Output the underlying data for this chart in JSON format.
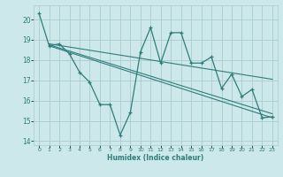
{
  "xlabel": "Humidex (Indice chaleur)",
  "xlim": [
    -0.5,
    23.5
  ],
  "ylim": [
    13.8,
    20.7
  ],
  "yticks": [
    14,
    15,
    16,
    17,
    18,
    19,
    20
  ],
  "xticks": [
    0,
    1,
    2,
    3,
    4,
    5,
    6,
    7,
    8,
    9,
    10,
    11,
    12,
    13,
    14,
    15,
    16,
    17,
    18,
    19,
    20,
    21,
    22,
    23
  ],
  "background_color": "#cce8ea",
  "grid_color": "#aacccc",
  "line_color": "#2e7d7a",
  "series_main_x": [
    0,
    1,
    2,
    3,
    4,
    5,
    6,
    7,
    8,
    9,
    10,
    11,
    12,
    13,
    14,
    15,
    16,
    17,
    18,
    19,
    20,
    21,
    22,
    23
  ],
  "series_main_y": [
    20.3,
    18.7,
    18.8,
    18.3,
    17.4,
    16.9,
    15.8,
    15.8,
    14.3,
    15.4,
    18.4,
    19.6,
    17.85,
    19.35,
    19.35,
    17.85,
    17.85,
    18.15,
    16.6,
    17.3,
    16.2,
    16.55,
    15.15,
    15.2
  ],
  "trend_lines": [
    {
      "x": [
        1,
        23
      ],
      "y": [
        18.7,
        15.15
      ]
    },
    {
      "x": [
        1,
        23
      ],
      "y": [
        18.75,
        15.35
      ]
    },
    {
      "x": [
        1,
        23
      ],
      "y": [
        18.8,
        17.05
      ]
    }
  ]
}
